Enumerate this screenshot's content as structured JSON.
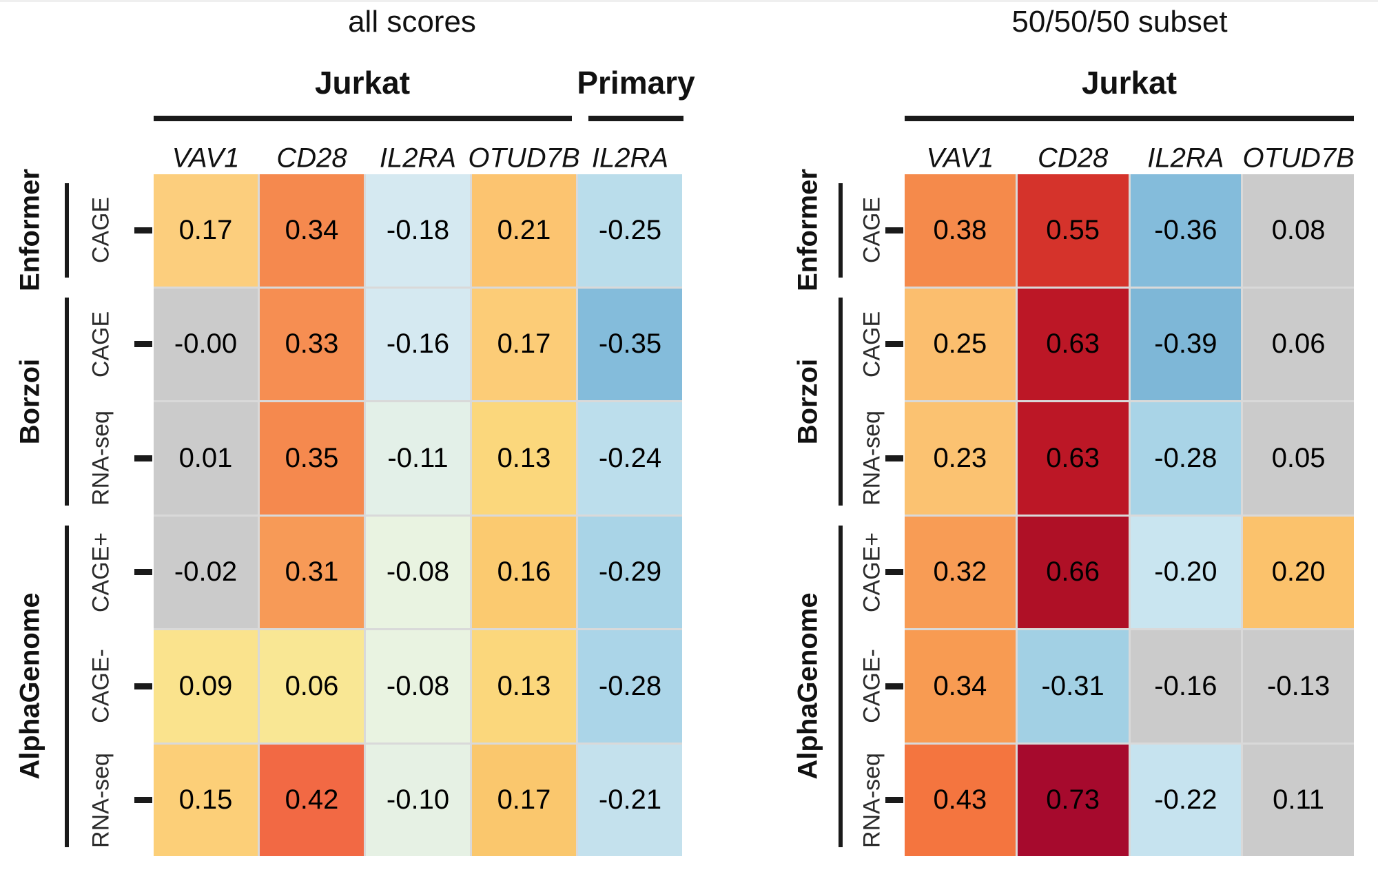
{
  "figure": {
    "background": "#ffffff",
    "gridline_color": "#D9D9D9",
    "nonsignificant_gray": "#CBCBCB",
    "left_title": "all scores",
    "right_title": "50/50/50 subset"
  },
  "chart_data": [
    {
      "type": "heatmap",
      "title": "all scores",
      "column_groups": [
        {
          "label": "Jurkat",
          "columns": [
            "VAV1",
            "CD28",
            "IL2RA",
            "OTUD7B"
          ]
        },
        {
          "label": "Primary",
          "columns": [
            "IL2RA"
          ]
        }
      ],
      "columns": [
        "VAV1",
        "CD28",
        "IL2RA",
        "OTUD7B",
        "IL2RA"
      ],
      "row_groups": [
        {
          "label": "Enformer",
          "rows": [
            0
          ]
        },
        {
          "label": "Borzoi",
          "rows": [
            1,
            2
          ]
        },
        {
          "label": "AlphaGenome",
          "rows": [
            3,
            4,
            5
          ]
        }
      ],
      "rows": [
        {
          "model": "Enformer",
          "assay": "CAGE"
        },
        {
          "model": "Borzoi",
          "assay": "CAGE"
        },
        {
          "model": "Borzoi",
          "assay": "RNA-seq"
        },
        {
          "model": "AlphaGenome",
          "assay": "CAGE+"
        },
        {
          "model": "AlphaGenome",
          "assay": "CAGE-"
        },
        {
          "model": "AlphaGenome",
          "assay": "RNA-seq"
        }
      ],
      "values": [
        [
          0.17,
          0.34,
          -0.18,
          0.21,
          -0.25
        ],
        [
          -0.0,
          0.33,
          -0.16,
          0.17,
          -0.35
        ],
        [
          0.01,
          0.35,
          -0.11,
          0.13,
          -0.24
        ],
        [
          -0.02,
          0.31,
          -0.08,
          0.16,
          -0.29
        ],
        [
          0.09,
          0.06,
          -0.08,
          0.13,
          -0.28
        ],
        [
          0.15,
          0.42,
          -0.1,
          0.17,
          -0.21
        ]
      ],
      "value_labels": [
        [
          "0.17",
          "0.34",
          "-0.18",
          "0.21",
          "-0.25"
        ],
        [
          "-0.00",
          "0.33",
          "-0.16",
          "0.17",
          "-0.35"
        ],
        [
          "0.01",
          "0.35",
          "-0.11",
          "0.13",
          "-0.24"
        ],
        [
          "-0.02",
          "0.31",
          "-0.08",
          "0.16",
          "-0.29"
        ],
        [
          "0.09",
          "0.06",
          "-0.08",
          "0.13",
          "-0.28"
        ],
        [
          "0.15",
          "0.42",
          "-0.10",
          "0.17",
          "-0.21"
        ]
      ],
      "cell_colors": [
        [
          "#FCCE7D",
          "#F5894E",
          "#D5E9F1",
          "#FCC470",
          "#BADDEB"
        ],
        [
          "#CBCBCB",
          "#F68E52",
          "#D5E9F1",
          "#FCCC77",
          "#84BCDB"
        ],
        [
          "#CBCBCB",
          "#F5894E",
          "#E3F0E8",
          "#FBD77C",
          "#BCDEEC"
        ],
        [
          "#CBCBCB",
          "#F79A57",
          "#E9F3E1",
          "#FBCA70",
          "#A9D4E7"
        ],
        [
          "#FAE38D",
          "#F9E794",
          "#E9F3E1",
          "#FBD77C",
          "#ABD5E8"
        ],
        [
          "#FCCF78",
          "#F26944",
          "#E6F1E4",
          "#FAC76D",
          "#C4E1ED"
        ]
      ]
    },
    {
      "type": "heatmap",
      "title": "50/50/50 subset",
      "column_groups": [
        {
          "label": "Jurkat",
          "columns": [
            "VAV1",
            "CD28",
            "IL2RA",
            "OTUD7B"
          ]
        }
      ],
      "columns": [
        "VAV1",
        "CD28",
        "IL2RA",
        "OTUD7B"
      ],
      "row_groups": [
        {
          "label": "Enformer",
          "rows": [
            0
          ]
        },
        {
          "label": "Borzoi",
          "rows": [
            1,
            2
          ]
        },
        {
          "label": "AlphaGenome",
          "rows": [
            3,
            4,
            5
          ]
        }
      ],
      "rows": [
        {
          "model": "Enformer",
          "assay": "CAGE"
        },
        {
          "model": "Borzoi",
          "assay": "CAGE"
        },
        {
          "model": "Borzoi",
          "assay": "RNA-seq"
        },
        {
          "model": "AlphaGenome",
          "assay": "CAGE+"
        },
        {
          "model": "AlphaGenome",
          "assay": "CAGE-"
        },
        {
          "model": "AlphaGenome",
          "assay": "RNA-seq"
        }
      ],
      "values": [
        [
          0.38,
          0.55,
          -0.36,
          0.08
        ],
        [
          0.25,
          0.63,
          -0.39,
          0.06
        ],
        [
          0.23,
          0.63,
          -0.28,
          0.05
        ],
        [
          0.32,
          0.66,
          -0.2,
          0.2
        ],
        [
          0.34,
          -0.31,
          -0.16,
          -0.13
        ],
        [
          0.43,
          0.73,
          -0.22,
          0.11
        ]
      ],
      "value_labels": [
        [
          "0.38",
          "0.55",
          "-0.36",
          "0.08"
        ],
        [
          "0.25",
          "0.63",
          "-0.39",
          "0.06"
        ],
        [
          "0.23",
          "0.63",
          "-0.28",
          "0.05"
        ],
        [
          "0.32",
          "0.66",
          "-0.20",
          "0.20"
        ],
        [
          "0.34",
          "-0.31",
          "-0.16",
          "-0.13"
        ],
        [
          "0.43",
          "0.73",
          "-0.22",
          "0.11"
        ]
      ],
      "cell_colors": [
        [
          "#F58A4B",
          "#D5332B",
          "#84BCDB",
          "#CBCBCB"
        ],
        [
          "#FBBE6E",
          "#BC1726",
          "#7EB7D7",
          "#CBCBCB"
        ],
        [
          "#FBC271",
          "#BC1726",
          "#A9D4E7",
          "#CBCBCB"
        ],
        [
          "#F89C55",
          "#AF1026",
          "#C9E5F0",
          "#FBC26C"
        ],
        [
          "#F89B52",
          "#A2D0E4",
          "#CBCBCB",
          "#CBCBCB"
        ],
        [
          "#F4753F",
          "#A60A2D",
          "#C6E3EF",
          "#CBCBCB"
        ]
      ]
    }
  ]
}
